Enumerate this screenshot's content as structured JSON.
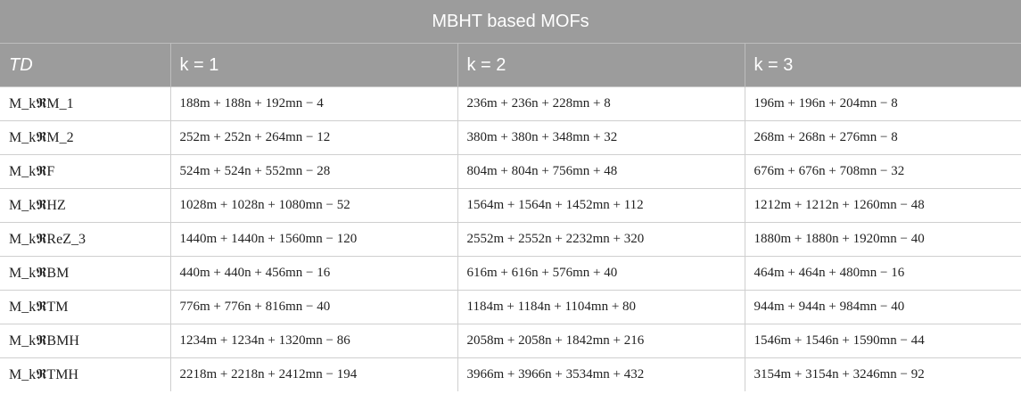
{
  "table": {
    "title": "MBHT based MOFs",
    "headers": [
      "TD",
      "k = 1",
      "k = 2",
      "k = 3"
    ],
    "rows": [
      [
        "M_k𝕽M_1",
        "188m + 188n + 192mn − 4",
        "236m + 236n + 228mn + 8",
        "196m + 196n + 204mn − 8"
      ],
      [
        "M_k𝕽M_2",
        "252m + 252n + 264mn − 12",
        "380m + 380n + 348mn + 32",
        "268m + 268n + 276mn − 8"
      ],
      [
        "M_k𝕽F",
        "524m + 524n + 552mn − 28",
        "804m + 804n + 756mn + 48",
        "676m + 676n + 708mn − 32"
      ],
      [
        "M_k𝕽HZ",
        "1028m + 1028n + 1080mn − 52",
        "1564m + 1564n + 1452mn + 112",
        "1212m + 1212n + 1260mn − 48"
      ],
      [
        "M_k𝕽ReZ_3",
        "1440m + 1440n + 1560mn − 120",
        "2552m + 2552n + 2232mn + 320",
        "1880m + 1880n + 1920mn − 40"
      ],
      [
        "M_k𝕽BM",
        "440m + 440n + 456mn − 16",
        "616m + 616n + 576mn + 40",
        "464m + 464n + 480mn − 16"
      ],
      [
        "M_k𝕽TM",
        "776m + 776n + 816mn − 40",
        "1184m + 1184n + 1104mn + 80",
        "944m + 944n + 984mn − 40"
      ],
      [
        "M_k𝕽BMH",
        "1234m + 1234n + 1320mn − 86",
        "2058m + 2058n + 1842mn + 216",
        "1546m + 1546n + 1590mn − 44"
      ],
      [
        "M_k𝕽TMH",
        "2218m + 2218n + 2412mn − 194",
        "3966m + 3966n + 3534mn + 432",
        "3154m + 3154n + 3246mn − 92"
      ]
    ]
  }
}
